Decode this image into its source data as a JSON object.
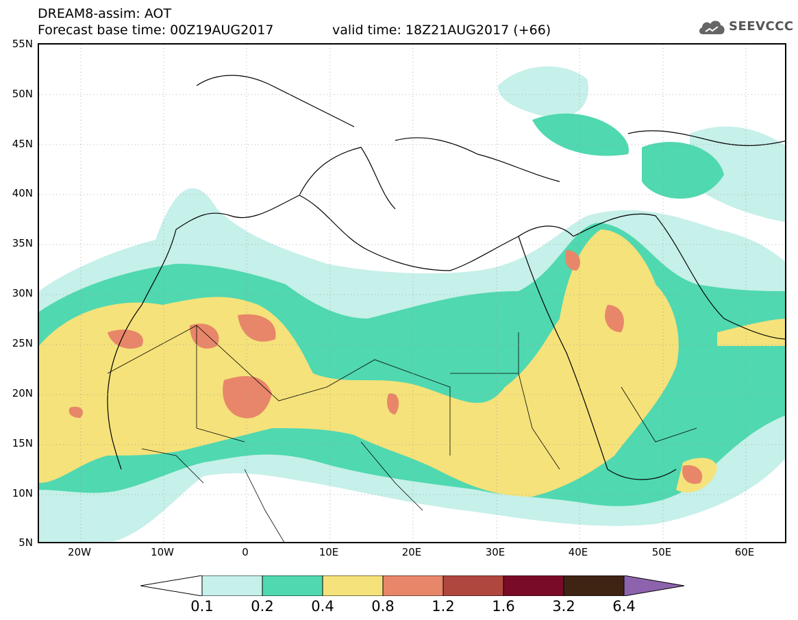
{
  "header": {
    "title": "DREAM8-assim: AOT",
    "forecast_base": "Forecast base time: 00Z19AUG2017",
    "valid_time": "valid time: 18Z21AUG2017 (+66)",
    "logo_text": "SEEVCCC"
  },
  "map": {
    "variable": "AOT",
    "region": "North Africa / Mediterranean / Middle East",
    "lon_range": [
      -25,
      65
    ],
    "lat_range": [
      5,
      55
    ],
    "lat_labels": [
      "55N",
      "50N",
      "45N",
      "40N",
      "35N",
      "30N",
      "25N",
      "20N",
      "15N",
      "10N",
      "5N"
    ],
    "lon_labels": [
      "20W",
      "10W",
      "0",
      "10E",
      "20E",
      "30E",
      "40E",
      "50E",
      "60E"
    ],
    "gridlines": "dotted"
  },
  "colorbar": {
    "levels": [
      "0.1",
      "0.2",
      "0.4",
      "0.8",
      "1.2",
      "1.6",
      "3.2",
      "6.4"
    ],
    "colors": [
      "#ffffff",
      "#c6f0ea",
      "#50d8b0",
      "#f5e27a",
      "#e8866a",
      "#b0473f",
      "#7a0b27",
      "#3f2414",
      "#8e63ad"
    ]
  }
}
